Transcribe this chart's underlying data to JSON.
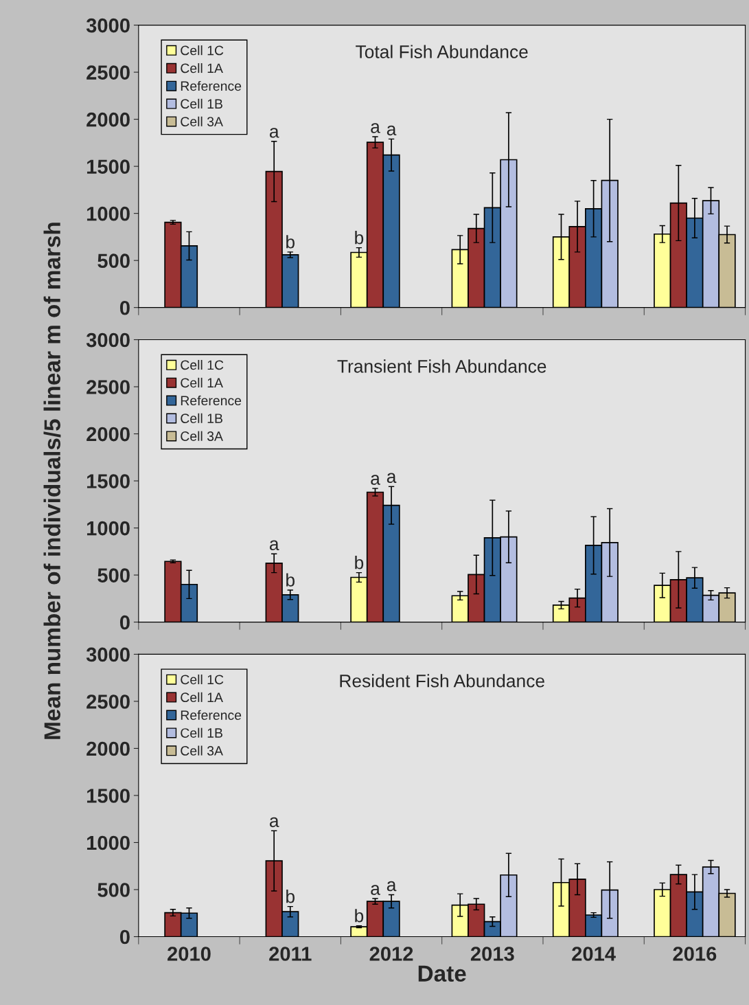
{
  "chart_data": [
    {
      "type": "bar",
      "title": "Total Fish Abundance",
      "categories": [
        "2010",
        "2011",
        "2012",
        "2013",
        "2014",
        "2016"
      ],
      "ylim": [
        0,
        3000
      ],
      "yticks": [
        0,
        500,
        1000,
        1500,
        2000,
        2500,
        3000
      ],
      "legend": "top left",
      "tick_labels": "y",
      "series": [
        {
          "name": "Cell 1C",
          "color": "#ffff99",
          "values": [
            null,
            null,
            585,
            615,
            750,
            780
          ],
          "errors": [
            null,
            null,
            50,
            150,
            240,
            90
          ]
        },
        {
          "name": "Cell 1A",
          "color": "#993333",
          "values": [
            905,
            1445,
            1755,
            840,
            860,
            1110
          ],
          "errors": [
            20,
            320,
            60,
            150,
            270,
            400
          ]
        },
        {
          "name": "Reference",
          "color": "#336699",
          "values": [
            655,
            560,
            1620,
            1060,
            1050,
            950
          ],
          "errors": [
            150,
            30,
            170,
            370,
            300,
            210
          ]
        },
        {
          "name": "Cell 1B",
          "color": "#b3bde0",
          "values": [
            null,
            null,
            null,
            1570,
            1350,
            1135
          ],
          "errors": [
            null,
            null,
            null,
            500,
            650,
            140
          ]
        },
        {
          "name": "Cell 3A",
          "color": "#c8bc95",
          "values": [
            null,
            null,
            null,
            null,
            null,
            775
          ],
          "errors": [
            null,
            null,
            null,
            null,
            null,
            90
          ]
        }
      ],
      "annotations": [
        {
          "text": "a",
          "y": 1765
        },
        {
          "text": "b",
          "y": 590
        },
        {
          "text": "b",
          "y": 635
        },
        {
          "text": "a",
          "y": 1815
        },
        {
          "text": "a",
          "y": 1790
        }
      ]
    },
    {
      "type": "bar",
      "title": "Transient Fish Abundance",
      "ylabel": "Mean number of individuals/5 linear m of marsh",
      "categories": [
        "2010",
        "2011",
        "2012",
        "2013",
        "2014",
        "2016"
      ],
      "ylim": [
        0,
        3000
      ],
      "yticks": [
        0,
        500,
        1000,
        1500,
        2000,
        2500,
        3000
      ],
      "legend": "top left",
      "tick_labels": "y",
      "series": [
        {
          "name": "Cell 1C",
          "color": "#ffff99",
          "values": [
            null,
            null,
            475,
            280,
            180,
            390
          ],
          "errors": [
            null,
            null,
            50,
            45,
            40,
            130
          ]
        },
        {
          "name": "Cell 1A",
          "color": "#993333",
          "values": [
            645,
            625,
            1380,
            505,
            255,
            450
          ],
          "errors": [
            15,
            100,
            40,
            205,
            95,
            300
          ]
        },
        {
          "name": "Reference",
          "color": "#336699",
          "values": [
            400,
            290,
            1240,
            895,
            815,
            470
          ],
          "errors": [
            150,
            50,
            200,
            400,
            305,
            110
          ]
        },
        {
          "name": "Cell 1B",
          "color": "#b3bde0",
          "values": [
            null,
            null,
            null,
            905,
            845,
            285
          ],
          "errors": [
            null,
            null,
            null,
            275,
            360,
            50
          ]
        },
        {
          "name": "Cell 3A",
          "color": "#c8bc95",
          "values": [
            null,
            null,
            null,
            null,
            null,
            310
          ],
          "errors": [
            null,
            null,
            null,
            null,
            null,
            55
          ]
        }
      ],
      "annotations": [
        {
          "text": "a",
          "y": 725
        },
        {
          "text": "b",
          "y": 340
        },
        {
          "text": "b",
          "y": 525
        },
        {
          "text": "a",
          "y": 1420
        },
        {
          "text": "a",
          "y": 1440
        }
      ]
    },
    {
      "type": "bar",
      "title": "Resident Fish Abundance",
      "xlabel": "Date",
      "categories": [
        "2010",
        "2011",
        "2012",
        "2013",
        "2014",
        "2016"
      ],
      "ylim": [
        0,
        3000
      ],
      "yticks": [
        0,
        500,
        1000,
        1500,
        2000,
        2500,
        3000
      ],
      "legend": "top left",
      "series": [
        {
          "name": "Cell 1C",
          "color": "#ffff99",
          "values": [
            null,
            null,
            105,
            335,
            575,
            500
          ],
          "errors": [
            null,
            null,
            10,
            120,
            250,
            70
          ]
        },
        {
          "name": "Cell 1A",
          "color": "#993333",
          "values": [
            255,
            805,
            375,
            345,
            610,
            660
          ],
          "errors": [
            35,
            320,
            30,
            60,
            165,
            100
          ]
        },
        {
          "name": "Reference",
          "color": "#336699",
          "values": [
            250,
            265,
            375,
            160,
            230,
            475
          ],
          "errors": [
            55,
            55,
            70,
            50,
            25,
            185
          ]
        },
        {
          "name": "Cell 1B",
          "color": "#b3bde0",
          "values": [
            null,
            null,
            null,
            655,
            495,
            740
          ],
          "errors": [
            null,
            null,
            null,
            230,
            300,
            70
          ]
        },
        {
          "name": "Cell 3A",
          "color": "#c8bc95",
          "values": [
            null,
            null,
            null,
            null,
            null,
            460
          ],
          "errors": [
            null,
            null,
            null,
            null,
            null,
            40
          ]
        }
      ],
      "annotations": [
        {
          "text": "a",
          "y": 1125
        },
        {
          "text": "b",
          "y": 320
        },
        {
          "text": "b",
          "y": 115
        },
        {
          "text": "a",
          "y": 405
        },
        {
          "text": "a",
          "y": 445
        }
      ]
    }
  ]
}
